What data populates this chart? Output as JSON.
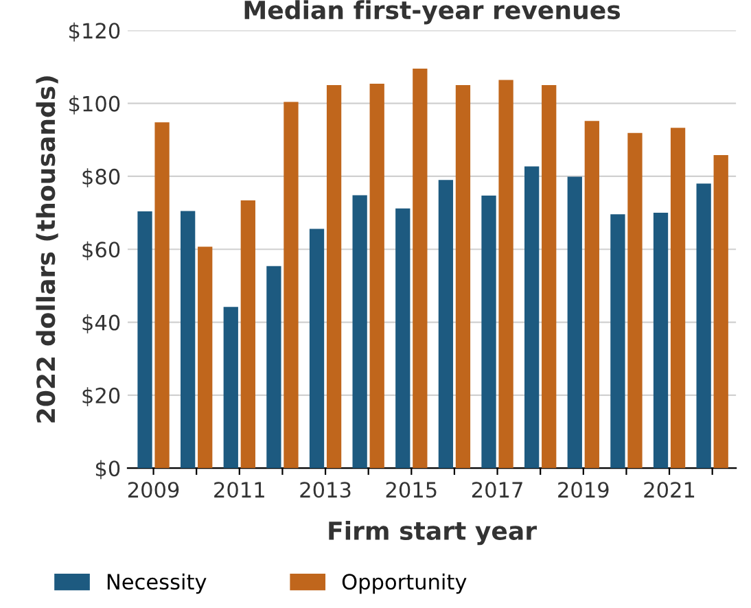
{
  "chart_data": {
    "type": "bar",
    "title": "Median first-year revenues",
    "xlabel": "Firm start year",
    "ylabel": "2022 dollars (thousands)",
    "categories": [
      "2009",
      null,
      "2011",
      null,
      "2013",
      null,
      "2015",
      null,
      "2017",
      null,
      "2019",
      null,
      "2021",
      null
    ],
    "series": [
      {
        "name": "Necessity",
        "color": "#1d5a80",
        "values": [
          70.4,
          70.5,
          44.2,
          55.4,
          65.6,
          74.8,
          71.2,
          79.0,
          74.7,
          82.7,
          79.9,
          69.6,
          70.0,
          78.0
        ]
      },
      {
        "name": "Opportunity",
        "color": "#c0661c",
        "values": [
          94.8,
          60.7,
          73.4,
          100.4,
          105.0,
          105.4,
          109.5,
          105.0,
          106.4,
          105.0,
          95.2,
          91.9,
          93.3,
          85.8
        ]
      }
    ],
    "ylim": [
      0,
      120
    ],
    "yticks": [
      {
        "value": 0,
        "label": "$0"
      },
      {
        "value": 20,
        "label": "$20"
      },
      {
        "value": 40,
        "label": "$40"
      },
      {
        "value": 60,
        "label": "$60"
      },
      {
        "value": 80,
        "label": "$80"
      },
      {
        "value": 100,
        "label": "$100"
      },
      {
        "value": 120,
        "label": "$120"
      }
    ],
    "grid": "y",
    "legend": "bottom"
  }
}
